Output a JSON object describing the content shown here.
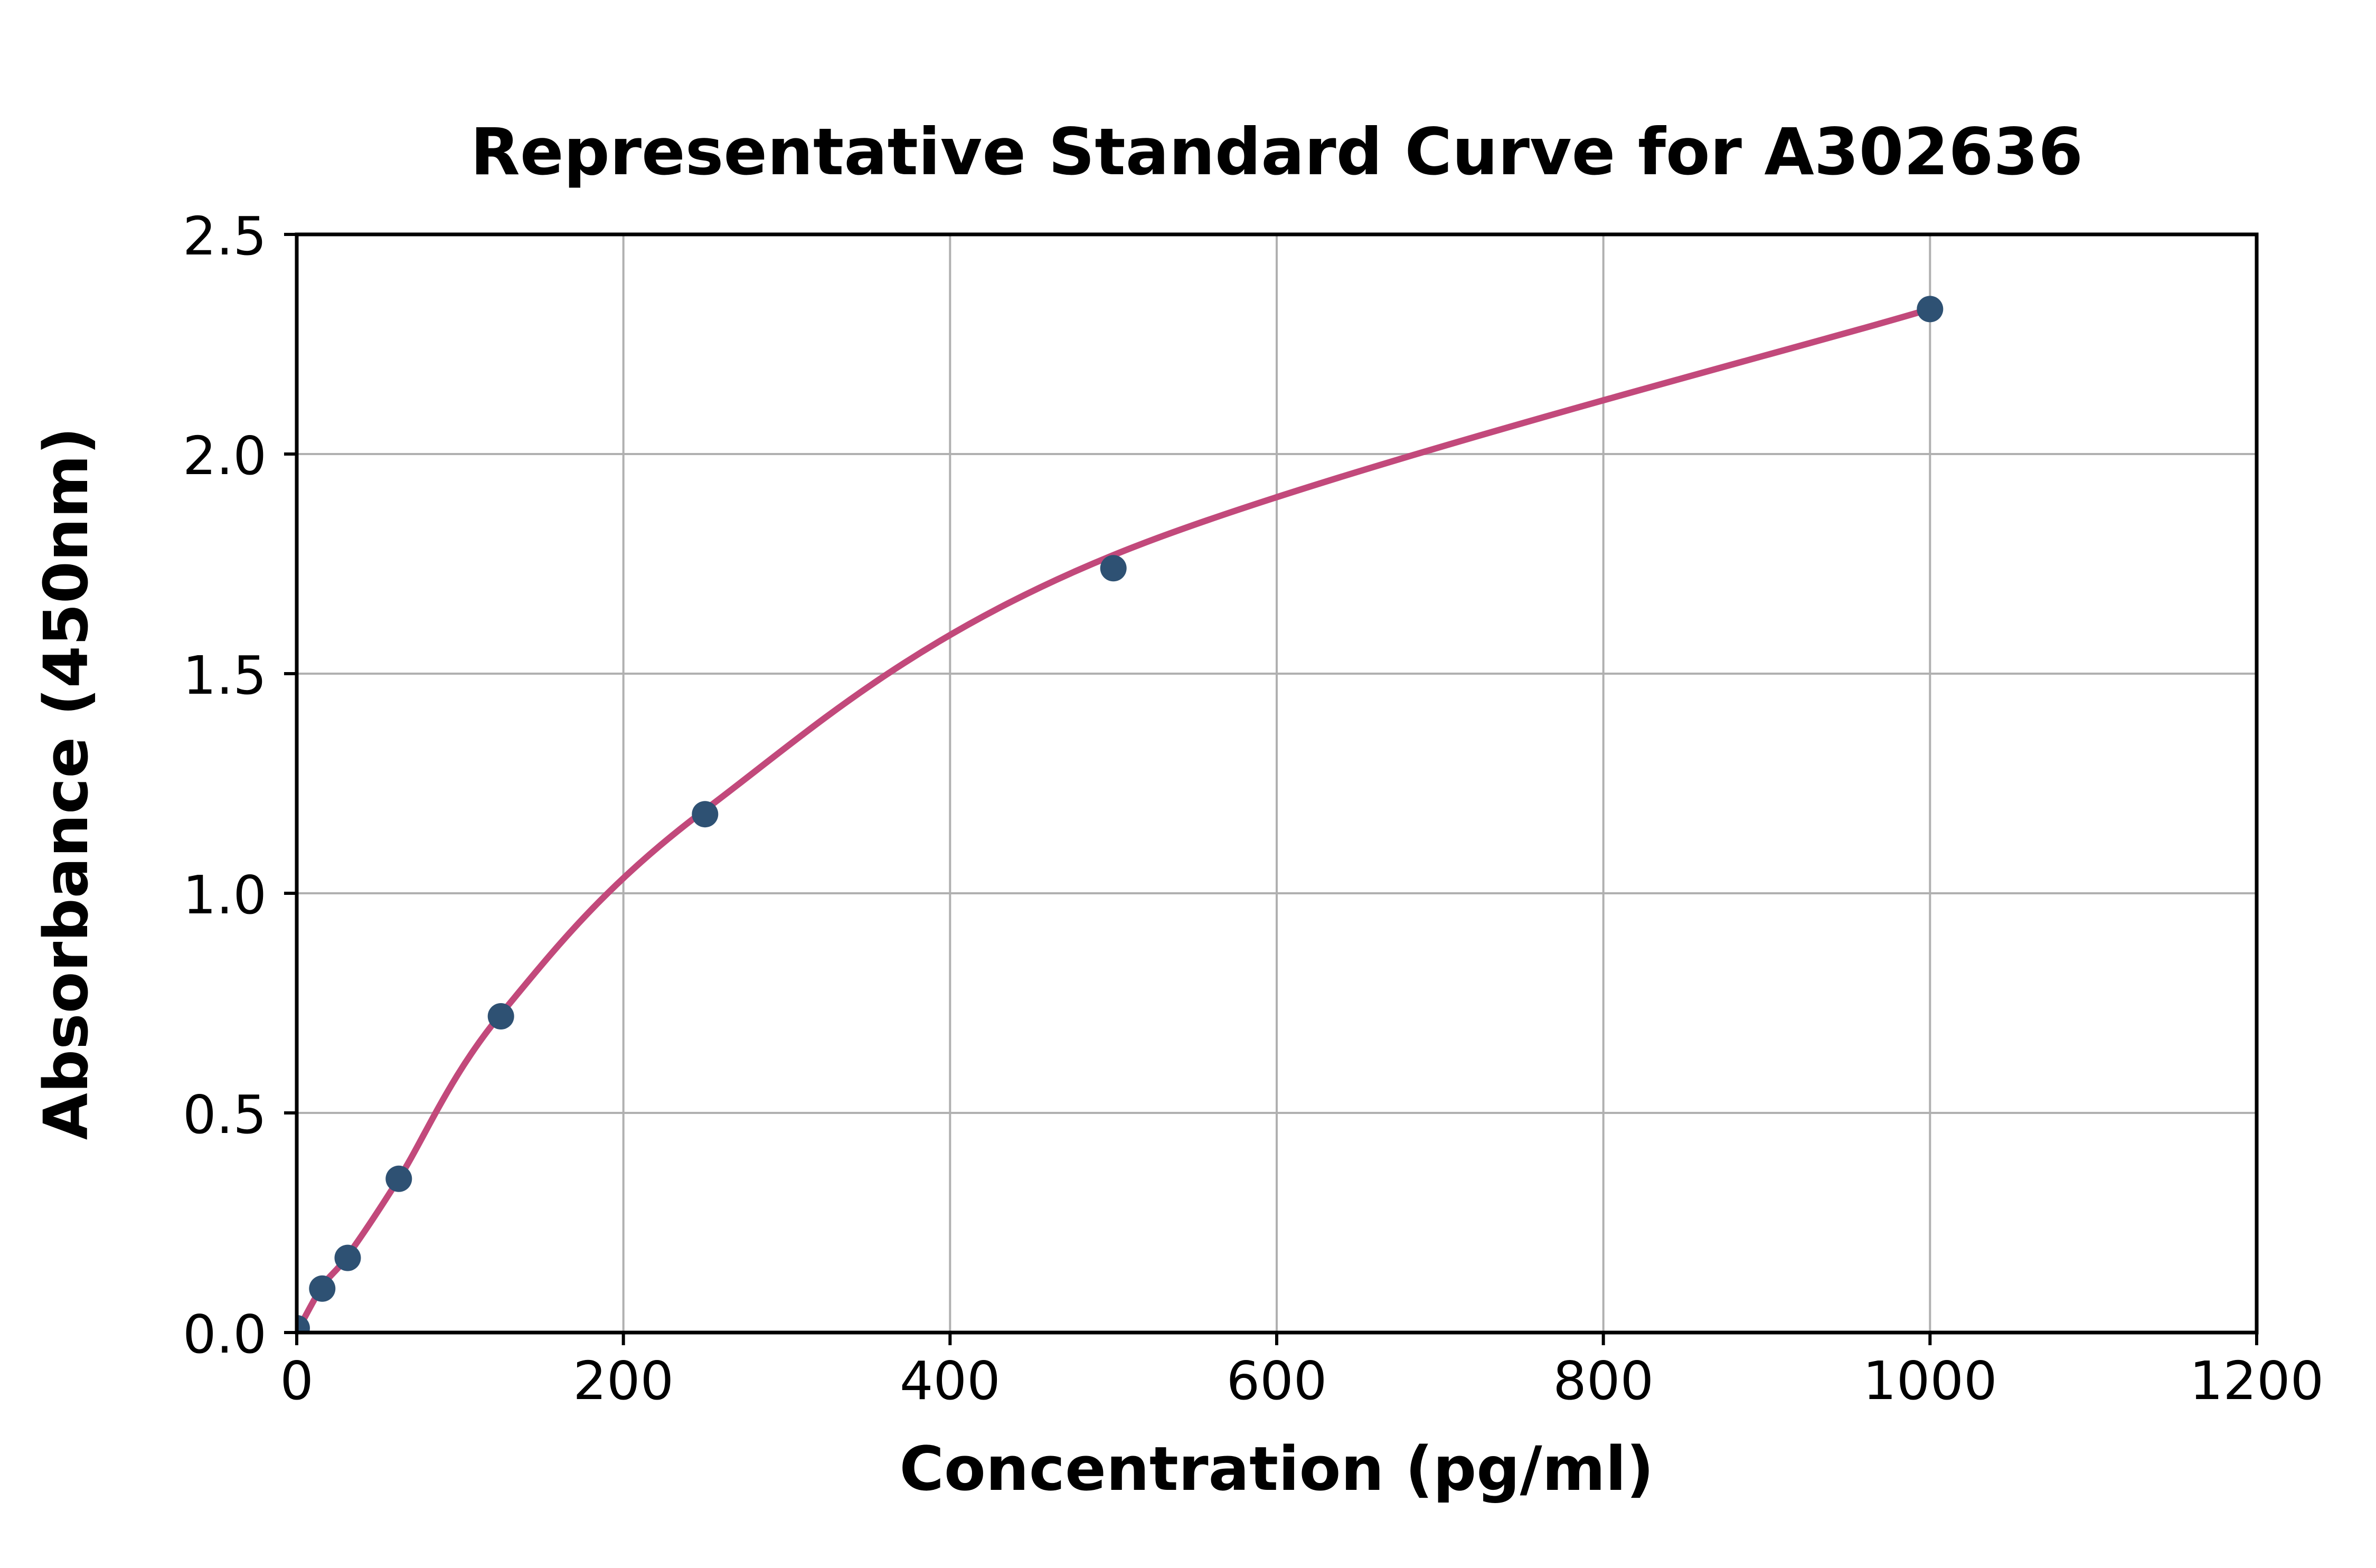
{
  "chart_data": {
    "type": "scatter",
    "title": "Representative Standard Curve for A302636",
    "xlabel": "Concentration (pg/ml)",
    "ylabel": "Absorbance (450nm)",
    "xlim": [
      0,
      1200
    ],
    "ylim": [
      0,
      2.5
    ],
    "xticks": {
      "values": [
        0,
        200,
        400,
        600,
        800,
        1000,
        1200
      ],
      "labels": [
        "0",
        "200",
        "400",
        "600",
        "800",
        "1000",
        "1200"
      ]
    },
    "yticks": {
      "values": [
        0,
        0.5,
        1.0,
        1.5,
        2.0,
        2.5
      ],
      "labels": [
        "0.0",
        "0.5",
        "1.0",
        "1.5",
        "2.0",
        "2.5"
      ]
    },
    "grid": true,
    "legend_position": "none",
    "colors": {
      "marker": "#2E5173",
      "curve": "#C2497B",
      "grid": "#B0B0B0",
      "axis": "#000000",
      "background": "#FFFFFF"
    },
    "series": [
      {
        "name": "standard-points",
        "type": "scatter",
        "color": "#2E5173",
        "points": [
          {
            "x": 0,
            "y": 0.01
          },
          {
            "x": 15.6,
            "y": 0.1
          },
          {
            "x": 31.2,
            "y": 0.17
          },
          {
            "x": 62.5,
            "y": 0.35
          },
          {
            "x": 125,
            "y": 0.72
          },
          {
            "x": 250,
            "y": 1.18
          },
          {
            "x": 500,
            "y": 1.74
          },
          {
            "x": 1000,
            "y": 2.33
          }
        ]
      },
      {
        "name": "fitted-curve",
        "type": "line",
        "color": "#C2497B",
        "points": [
          {
            "x": 0,
            "y": 0.0
          },
          {
            "x": 15.6,
            "y": 0.105
          },
          {
            "x": 31.2,
            "y": 0.175
          },
          {
            "x": 62.5,
            "y": 0.35
          },
          {
            "x": 125,
            "y": 0.725
          },
          {
            "x": 250,
            "y": 1.19
          },
          {
            "x": 500,
            "y": 1.77
          },
          {
            "x": 1000,
            "y": 2.33
          }
        ]
      }
    ]
  }
}
